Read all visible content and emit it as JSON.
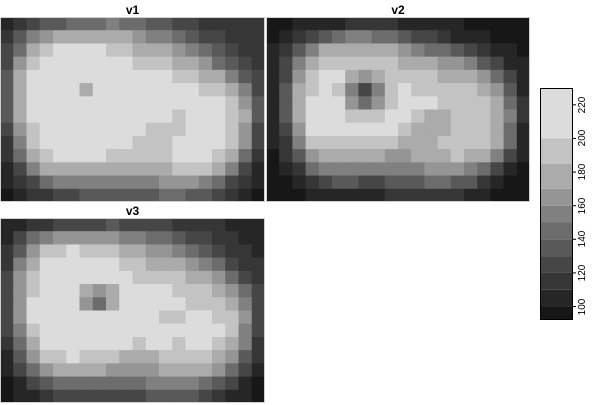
{
  "chart_data": {
    "type": "heatmap",
    "panels": [
      {
        "title": "v1",
        "cols": 20,
        "rows": 14,
        "values": [
          [
            108,
            115,
            125,
            130,
            135,
            140,
            140,
            145,
            150,
            145,
            140,
            135,
            130,
            125,
            120,
            118,
            115,
            112,
            110,
            110
          ],
          [
            115,
            130,
            150,
            165,
            175,
            180,
            182,
            182,
            178,
            170,
            160,
            155,
            150,
            140,
            130,
            125,
            120,
            115,
            112,
            110
          ],
          [
            120,
            145,
            175,
            195,
            205,
            210,
            210,
            205,
            195,
            185,
            178,
            175,
            170,
            160,
            150,
            140,
            130,
            120,
            115,
            112
          ],
          [
            125,
            160,
            190,
            210,
            220,
            222,
            222,
            220,
            212,
            200,
            195,
            192,
            190,
            180,
            170,
            160,
            148,
            135,
            122,
            115
          ],
          [
            130,
            170,
            200,
            218,
            225,
            228,
            228,
            226,
            222,
            215,
            208,
            205,
            200,
            195,
            190,
            180,
            170,
            155,
            135,
            120
          ],
          [
            132,
            175,
            205,
            222,
            228,
            228,
            170,
            228,
            225,
            222,
            218,
            214,
            208,
            205,
            202,
            198,
            190,
            175,
            150,
            125
          ],
          [
            133,
            175,
            205,
            222,
            228,
            228,
            225,
            228,
            228,
            225,
            222,
            220,
            215,
            205,
            205,
            205,
            200,
            190,
            165,
            130
          ],
          [
            130,
            172,
            205,
            222,
            228,
            228,
            228,
            228,
            228,
            228,
            224,
            205,
            200,
            198,
            205,
            208,
            205,
            195,
            170,
            130
          ],
          [
            125,
            165,
            198,
            218,
            225,
            228,
            228,
            228,
            226,
            222,
            210,
            198,
            195,
            198,
            205,
            210,
            208,
            198,
            168,
            128
          ],
          [
            118,
            155,
            188,
            210,
            220,
            222,
            222,
            220,
            215,
            205,
            195,
            195,
            198,
            200,
            208,
            212,
            205,
            190,
            160,
            122
          ],
          [
            110,
            140,
            172,
            195,
            205,
            208,
            206,
            200,
            195,
            188,
            186,
            190,
            195,
            200,
            205,
            205,
            195,
            175,
            145,
            115
          ],
          [
            105,
            125,
            150,
            170,
            180,
            182,
            180,
            175,
            172,
            170,
            170,
            175,
            182,
            188,
            190,
            185,
            172,
            150,
            125,
            108
          ],
          [
            100,
            110,
            125,
            140,
            150,
            155,
            155,
            152,
            150,
            150,
            152,
            158,
            165,
            168,
            165,
            155,
            140,
            125,
            110,
            100
          ],
          [
            98,
            102,
            110,
            118,
            125,
            128,
            130,
            130,
            130,
            130,
            132,
            138,
            142,
            142,
            138,
            130,
            120,
            110,
            102,
            98
          ]
        ]
      },
      {
        "title": "v2",
        "cols": 20,
        "rows": 14,
        "values": [
          [
            96,
            98,
            100,
            102,
            105,
            108,
            110,
            112,
            112,
            110,
            108,
            106,
            104,
            102,
            100,
            98,
            97,
            96,
            96,
            96
          ],
          [
            98,
            102,
            110,
            120,
            135,
            145,
            150,
            150,
            148,
            140,
            130,
            125,
            120,
            115,
            108,
            104,
            100,
            98,
            97,
            96
          ],
          [
            100,
            110,
            130,
            155,
            170,
            180,
            182,
            182,
            180,
            172,
            160,
            150,
            145,
            140,
            130,
            120,
            110,
            104,
            100,
            98
          ],
          [
            102,
            120,
            150,
            175,
            190,
            198,
            195,
            195,
            195,
            190,
            182,
            175,
            170,
            165,
            160,
            150,
            138,
            120,
            108,
            100
          ],
          [
            104,
            128,
            165,
            188,
            200,
            200,
            175,
            160,
            175,
            198,
            195,
            190,
            185,
            180,
            175,
            170,
            162,
            148,
            120,
            104
          ],
          [
            105,
            132,
            170,
            195,
            205,
            190,
            150,
            125,
            150,
            195,
            200,
            198,
            195,
            192,
            188,
            185,
            178,
            162,
            135,
            108
          ],
          [
            105,
            132,
            172,
            210,
            222,
            200,
            160,
            148,
            160,
            195,
            205,
            205,
            200,
            190,
            190,
            192,
            188,
            172,
            145,
            110
          ],
          [
            104,
            130,
            170,
            212,
            222,
            205,
            190,
            190,
            195,
            200,
            200,
            185,
            180,
            180,
            188,
            195,
            192,
            178,
            150,
            110
          ],
          [
            102,
            125,
            165,
            200,
            205,
            205,
            205,
            205,
            205,
            200,
            190,
            180,
            178,
            182,
            190,
            198,
            192,
            180,
            148,
            108
          ],
          [
            100,
            118,
            155,
            185,
            195,
            198,
            198,
            196,
            192,
            185,
            178,
            178,
            182,
            185,
            192,
            195,
            188,
            172,
            140,
            104
          ],
          [
            98,
            110,
            138,
            165,
            180,
            182,
            180,
            175,
            172,
            168,
            168,
            172,
            178,
            182,
            185,
            182,
            170,
            150,
            125,
            100
          ],
          [
            96,
            102,
            118,
            140,
            155,
            158,
            156,
            152,
            150,
            150,
            152,
            158,
            165,
            168,
            165,
            158,
            145,
            125,
            108,
            97
          ],
          [
            95,
            97,
            104,
            115,
            125,
            130,
            130,
            128,
            128,
            130,
            132,
            138,
            142,
            142,
            138,
            130,
            118,
            106,
            98,
            95
          ],
          [
            94,
            95,
            97,
            100,
            104,
            106,
            108,
            108,
            108,
            110,
            112,
            114,
            116,
            116,
            114,
            108,
            102,
            97,
            95,
            94
          ]
        ]
      },
      {
        "title": "v3",
        "cols": 20,
        "rows": 14,
        "values": [
          [
            100,
            105,
            112,
            118,
            122,
            125,
            125,
            128,
            130,
            128,
            125,
            122,
            120,
            118,
            115,
            112,
            110,
            108,
            106,
            105
          ],
          [
            108,
            122,
            140,
            155,
            165,
            168,
            168,
            168,
            165,
            158,
            150,
            145,
            140,
            132,
            125,
            120,
            115,
            110,
            108,
            106
          ],
          [
            112,
            138,
            165,
            185,
            195,
            200,
            198,
            195,
            188,
            178,
            170,
            166,
            162,
            155,
            145,
            135,
            125,
            115,
            110,
            108
          ],
          [
            118,
            150,
            180,
            200,
            212,
            215,
            212,
            208,
            200,
            190,
            185,
            182,
            180,
            172,
            162,
            152,
            140,
            128,
            115,
            110
          ],
          [
            122,
            160,
            192,
            212,
            222,
            222,
            210,
            200,
            210,
            205,
            198,
            195,
            192,
            188,
            182,
            172,
            162,
            148,
            128,
            115
          ],
          [
            125,
            165,
            198,
            218,
            226,
            215,
            175,
            160,
            178,
            210,
            210,
            205,
            200,
            198,
            195,
            190,
            182,
            168,
            142,
            120
          ],
          [
            126,
            166,
            200,
            220,
            228,
            212,
            165,
            140,
            170,
            212,
            214,
            210,
            205,
            200,
            198,
            198,
            192,
            180,
            155,
            124
          ],
          [
            124,
            164,
            200,
            220,
            228,
            224,
            210,
            205,
            212,
            218,
            215,
            205,
            198,
            196,
            200,
            202,
            198,
            185,
            160,
            124
          ],
          [
            120,
            158,
            194,
            216,
            224,
            226,
            225,
            224,
            220,
            212,
            205,
            212,
            222,
            200,
            200,
            204,
            200,
            188,
            158,
            122
          ],
          [
            114,
            148,
            182,
            205,
            214,
            216,
            214,
            212,
            208,
            200,
            192,
            200,
            205,
            195,
            200,
            202,
            196,
            180,
            150,
            118
          ],
          [
            108,
            135,
            165,
            188,
            198,
            200,
            198,
            194,
            188,
            182,
            180,
            184,
            188,
            192,
            195,
            192,
            182,
            165,
            138,
            110
          ],
          [
            102,
            120,
            145,
            165,
            174,
            176,
            174,
            170,
            166,
            164,
            164,
            168,
            174,
            178,
            178,
            172,
            160,
            142,
            120,
            104
          ],
          [
            98,
            108,
            122,
            136,
            145,
            148,
            148,
            146,
            145,
            145,
            147,
            152,
            156,
            158,
            155,
            146,
            134,
            120,
            106,
            98
          ],
          [
            96,
            100,
            106,
            114,
            120,
            123,
            124,
            124,
            124,
            125,
            127,
            131,
            134,
            134,
            130,
            124,
            115,
            106,
            100,
            96
          ]
        ]
      }
    ],
    "legend": {
      "ticks": [
        100,
        120,
        140,
        160,
        180,
        200,
        220
      ],
      "breaks": [
        92,
        100,
        110,
        120,
        130,
        140,
        150,
        160,
        170,
        185,
        200,
        230
      ],
      "colors": [
        "#171717",
        "#262626",
        "#363636",
        "#464646",
        "#595959",
        "#6c6c6c",
        "#808080",
        "#959595",
        "#ababab",
        "#c3c3c3",
        "#dcdcdc"
      ]
    },
    "value_range": [
      92,
      230
    ]
  }
}
